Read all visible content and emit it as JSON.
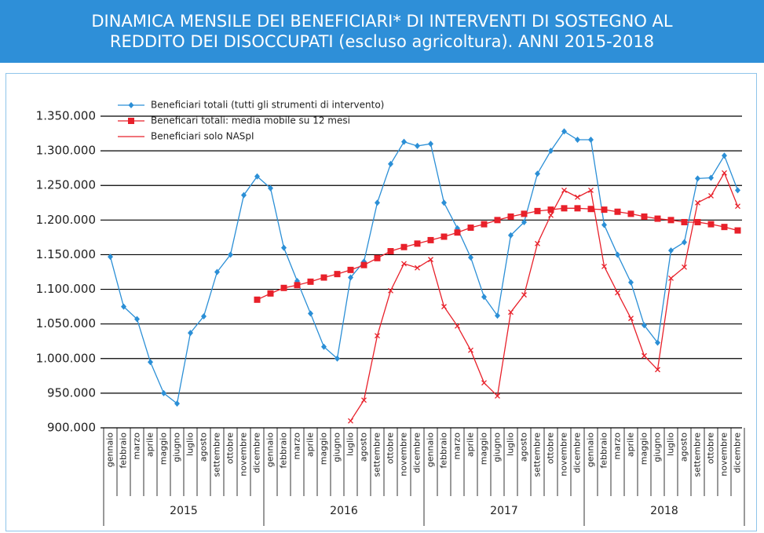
{
  "chart_data": {
    "type": "line",
    "title": [
      "DINAMICA MENSILE DEI BENEFICIARI* DI INTERVENTI DI SOSTEGNO AL",
      "REDDITO DEI DISOCCUPATI (escluso agricoltura). ANNI 2015-2018"
    ],
    "categories": [
      "gennaio",
      "febbraio",
      "marzo",
      "aprile",
      "maggio",
      "giugno",
      "luglio",
      "agosto",
      "settembre",
      "ottobre",
      "novembre",
      "dicembre",
      "gennaio",
      "febbraio",
      "marzo",
      "aprile",
      "maggio",
      "giugno",
      "luglio",
      "agosto",
      "settembre",
      "ottobre",
      "novembre",
      "dicembre",
      "gennaio",
      "febbraio",
      "marzo",
      "aprile",
      "maggio",
      "giugno",
      "luglio",
      "agosto",
      "settembre",
      "ottobre",
      "novembre",
      "dicembre",
      "gennaio",
      "febbraio",
      "marzo",
      "aprile",
      "maggio",
      "giugno",
      "luglio",
      "agosto",
      "settembre",
      "ottobre",
      "novembre",
      "dicembre"
    ],
    "years": [
      "2015",
      "2016",
      "2017",
      "2018"
    ],
    "ylim": [
      900000,
      1350000
    ],
    "yticks": [
      {
        "value": 900000,
        "label": "900.000"
      },
      {
        "value": 950000,
        "label": "950.000"
      },
      {
        "value": 1000000,
        "label": "1.000.000"
      },
      {
        "value": 1050000,
        "label": "1.050.000"
      },
      {
        "value": 1100000,
        "label": "1.100.000"
      },
      {
        "value": 1150000,
        "label": "1.150.000"
      },
      {
        "value": 1200000,
        "label": "1.200.000"
      },
      {
        "value": 1250000,
        "label": "1.250.000"
      },
      {
        "value": 1300000,
        "label": "1.300.000"
      },
      {
        "value": 1350000,
        "label": "1.350.000"
      }
    ],
    "grid": true,
    "legend": "top-left",
    "series": [
      {
        "name": "Beneficiari totali (tutti gli strumenti di intervento)",
        "color": "#2b8fd6",
        "marker": "diamond",
        "values": [
          1147000,
          1075000,
          1057000,
          995000,
          950000,
          935000,
          1037000,
          1061000,
          1125000,
          1150000,
          1236000,
          1263000,
          1246000,
          1160000,
          1112000,
          1065000,
          1017000,
          1000000,
          1117000,
          1140000,
          1225000,
          1281000,
          1313000,
          1307000,
          1310000,
          1225000,
          1188000,
          1146000,
          1089000,
          1062000,
          1178000,
          1197000,
          1267000,
          1300000,
          1328000,
          1316000,
          1316000,
          1193000,
          1150000,
          1110000,
          1048000,
          1023000,
          1156000,
          1168000,
          1260000,
          1261000,
          1293000,
          1243000
        ]
      },
      {
        "name": "Beneficari totali: media mobile su 12 mesi",
        "color": "#e8202a",
        "marker": "square",
        "values": [
          null,
          null,
          null,
          null,
          null,
          null,
          null,
          null,
          null,
          null,
          null,
          1085000,
          1094000,
          1102000,
          1106000,
          1111000,
          1117000,
          1122000,
          1128000,
          1135000,
          1145000,
          1155000,
          1161000,
          1166000,
          1171000,
          1176000,
          1182000,
          1189000,
          1194000,
          1200000,
          1205000,
          1209000,
          1213000,
          1215000,
          1217000,
          1217000,
          1216000,
          1215000,
          1212000,
          1209000,
          1205000,
          1202000,
          1200000,
          1197000,
          1197000,
          1194000,
          1190000,
          1185000
        ]
      },
      {
        "name": "Beneficiari solo NASpI",
        "color": "#e8202a",
        "marker": "cross",
        "values": [
          null,
          null,
          null,
          null,
          null,
          null,
          null,
          null,
          null,
          null,
          null,
          null,
          null,
          null,
          null,
          null,
          null,
          null,
          910000,
          940000,
          1033000,
          1098000,
          1137000,
          1131000,
          1143000,
          1075000,
          1047000,
          1012000,
          965000,
          946000,
          1067000,
          1092000,
          1166000,
          1207000,
          1243000,
          1233000,
          1243000,
          1133000,
          1095000,
          1058000,
          1004000,
          984000,
          1116000,
          1132000,
          1225000,
          1235000,
          1268000,
          1220000
        ]
      }
    ]
  }
}
